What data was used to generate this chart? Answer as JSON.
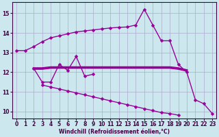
{
  "xlabel": "Windchill (Refroidissement éolien,°C)",
  "x": [
    0,
    1,
    2,
    3,
    4,
    5,
    6,
    7,
    8,
    9,
    10,
    11,
    12,
    13,
    14,
    15,
    16,
    17,
    18,
    19,
    20,
    21,
    22,
    23
  ],
  "line_top": [
    13.1,
    13.1,
    13.3,
    13.55,
    13.75,
    13.85,
    13.95,
    14.05,
    14.1,
    14.15,
    14.2,
    14.25,
    14.28,
    14.3,
    14.4,
    15.2,
    14.4,
    13.6,
    13.6,
    12.4,
    12.0,
    10.6,
    10.4,
    9.9
  ],
  "line_zigzag": [
    null,
    null,
    12.2,
    11.5,
    11.5,
    12.4,
    12.1,
    12.8,
    11.8,
    11.9,
    null,
    null,
    null,
    null,
    null,
    null,
    null,
    null,
    null,
    null,
    null,
    null,
    null,
    null
  ],
  "line_flat_thick": [
    null,
    null,
    12.2,
    12.2,
    12.25,
    12.25,
    12.25,
    12.25,
    12.25,
    12.25,
    12.25,
    12.25,
    12.25,
    12.25,
    12.25,
    12.25,
    12.25,
    12.25,
    12.25,
    12.2,
    12.1,
    null,
    null,
    null
  ],
  "line_flat_thin": [
    null,
    null,
    12.15,
    12.15,
    12.2,
    12.2,
    12.2,
    12.2,
    12.2,
    12.2,
    12.2,
    12.2,
    12.2,
    12.2,
    12.2,
    12.2,
    12.2,
    12.2,
    12.2,
    12.15,
    12.05,
    null,
    null,
    null
  ],
  "line_bot": [
    null,
    null,
    null,
    11.35,
    11.25,
    11.15,
    11.05,
    10.95,
    10.85,
    10.75,
    10.65,
    10.55,
    10.45,
    10.35,
    10.25,
    10.15,
    10.05,
    9.95,
    9.9,
    9.82,
    null,
    null,
    null,
    null
  ],
  "ylim": [
    9.65,
    15.55
  ],
  "xlim": [
    -0.5,
    23.5
  ],
  "yticks": [
    10,
    11,
    12,
    13,
    14,
    15
  ],
  "xticks": [
    0,
    1,
    2,
    3,
    4,
    5,
    6,
    7,
    8,
    9,
    10,
    11,
    12,
    13,
    14,
    15,
    16,
    17,
    18,
    19,
    20,
    21,
    22,
    23
  ],
  "line_color": "#990099",
  "bg_color": "#cce8ee",
  "grid_color": "#aaaacc",
  "markersize": 2.5
}
